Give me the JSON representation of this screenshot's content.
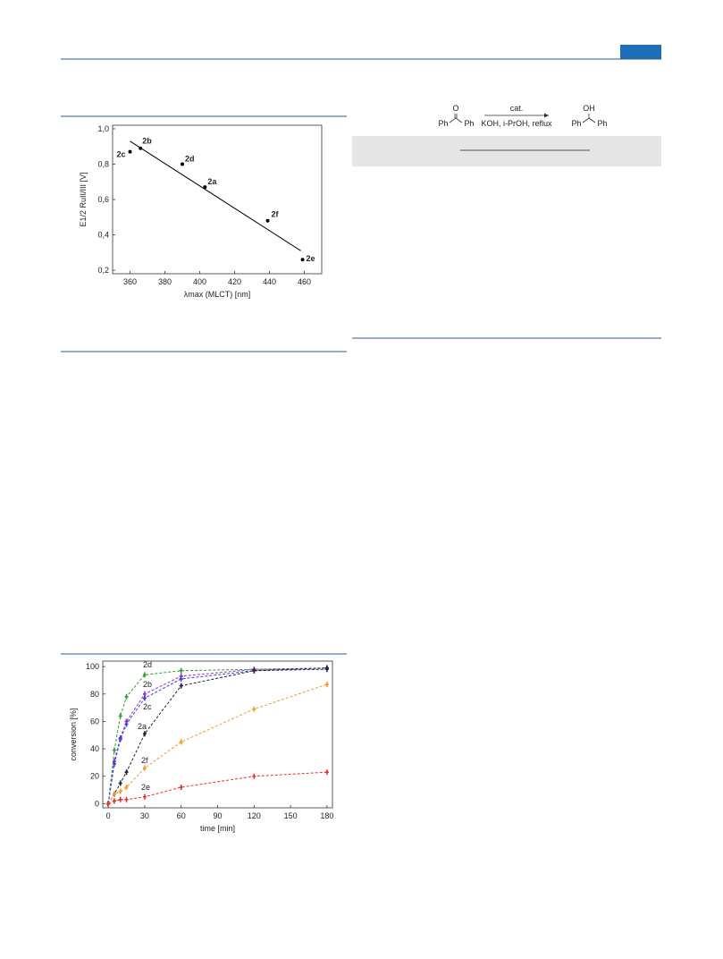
{
  "scheme": {
    "reactant": {
      "top": "O",
      "left": "Ph",
      "right": "Ph"
    },
    "conditions_above": "cat.",
    "conditions_below": "KOH, i-PrOH, reflux",
    "product": {
      "top": "OH",
      "left": "Ph",
      "right": "Ph"
    }
  },
  "chart_data": [
    {
      "type": "scatter",
      "xlabel": "λmax (MLCT) [nm]",
      "ylabel": "E1/2 RuII/III [V]",
      "x": [
        360,
        366,
        390,
        403,
        439,
        459
      ],
      "y": [
        0.87,
        0.89,
        0.8,
        0.67,
        0.48,
        0.26
      ],
      "point_labels": [
        "2c",
        "2b",
        "2d",
        "2a",
        "2f",
        "2e"
      ],
      "label_colors": [
        "#1f1fe0",
        "#8b1a9e",
        "#1a8a1a",
        "#000000",
        "#f08c00",
        "#e02020"
      ],
      "point_color": "#000000",
      "fit": {
        "x": [
          360,
          458
        ],
        "y": [
          0.93,
          0.31
        ],
        "color": "#000000"
      },
      "xlim": [
        350,
        470
      ],
      "ylim": [
        0.18,
        1.02
      ],
      "xticks": [
        360,
        380,
        400,
        420,
        440,
        460
      ],
      "yticks": [
        {
          "value": 0.2,
          "label": "0,2"
        },
        {
          "value": 0.4,
          "label": "0,4"
        },
        {
          "value": 0.6,
          "label": "0,6"
        },
        {
          "value": 0.8,
          "label": "0,8"
        },
        {
          "value": 1.0,
          "label": "1,0"
        }
      ]
    },
    {
      "type": "line",
      "xlabel": "time [min]",
      "ylabel": "conversion [%]",
      "x": [
        0,
        5,
        10,
        15,
        30,
        60,
        120,
        180
      ],
      "series": [
        {
          "name": "2d",
          "color": "#2ca02c",
          "values": [
            0,
            39,
            64,
            78,
            94,
            97,
            98,
            98
          ]
        },
        {
          "name": "2b",
          "color": "#9b30c0",
          "values": [
            0,
            31,
            48,
            60,
            80,
            93,
            98,
            99
          ]
        },
        {
          "name": "2c",
          "color": "#3a3ae8",
          "values": [
            0,
            29,
            47,
            58,
            77,
            91,
            97,
            98
          ]
        },
        {
          "name": "2a",
          "color": "#222222",
          "values": [
            0,
            7,
            15,
            23,
            51,
            86,
            97,
            99
          ]
        },
        {
          "name": "2f",
          "color": "#f39a2c",
          "values": [
            0,
            7,
            9,
            12,
            26,
            45,
            69,
            87
          ]
        },
        {
          "name": "2e",
          "color": "#e8302a",
          "values": [
            0,
            2,
            3,
            3,
            5,
            12,
            20,
            23
          ]
        }
      ],
      "xlim": [
        -4.5,
        184.5
      ],
      "ylim": [
        -3,
        104
      ],
      "xticks": [
        0,
        30,
        60,
        90,
        120,
        150,
        180
      ],
      "yticks": [
        0,
        20,
        40,
        60,
        80,
        100
      ]
    }
  ]
}
